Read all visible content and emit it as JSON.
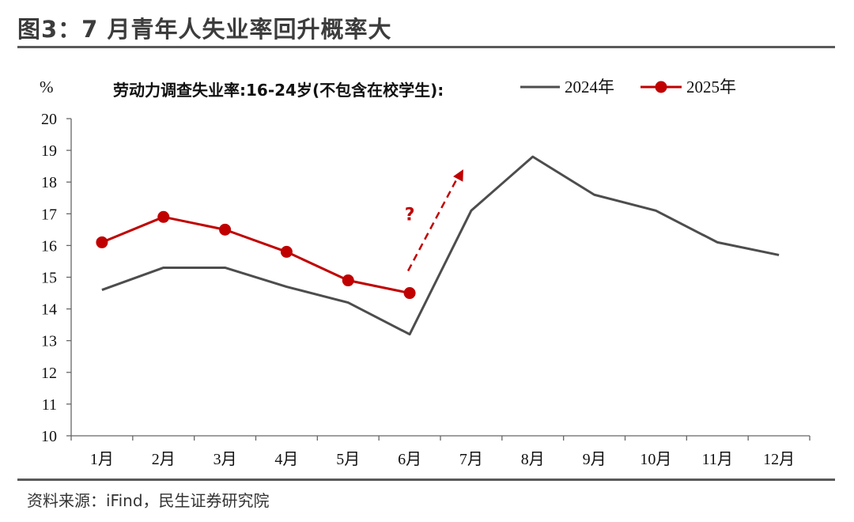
{
  "figure": {
    "title": "图3：7 月青年人失业率回升概率大",
    "source": "资料来源：iFind，民生证券研究院"
  },
  "chart_data": {
    "type": "line",
    "title": "劳动力调查失业率:16-24岁(不包含在校学生):",
    "ylabel": "%",
    "xlabel": "",
    "ylim": [
      10,
      20
    ],
    "yticks": [
      10,
      11,
      12,
      13,
      14,
      15,
      16,
      17,
      18,
      19,
      20
    ],
    "categories": [
      "1月",
      "2月",
      "3月",
      "4月",
      "5月",
      "6月",
      "7月",
      "8月",
      "9月",
      "10月",
      "11月",
      "12月"
    ],
    "series": [
      {
        "name": "2024年",
        "color": "#4d4d4d",
        "marker": false,
        "values": [
          14.6,
          15.3,
          15.3,
          14.7,
          14.2,
          13.2,
          17.1,
          18.8,
          17.6,
          17.1,
          16.1,
          15.7
        ]
      },
      {
        "name": "2025年",
        "color": "#c00000",
        "marker": true,
        "values": [
          16.1,
          16.9,
          16.5,
          15.8,
          14.9,
          14.5,
          null,
          null,
          null,
          null,
          null,
          null
        ]
      }
    ],
    "annotation": {
      "text": "?",
      "color": "#c00000",
      "arrow_from": {
        "x": "6月",
        "y": 15.2
      },
      "arrow_to": {
        "x": "7月",
        "y": 18.4
      }
    },
    "legend_position": "top-right",
    "grid": false
  }
}
